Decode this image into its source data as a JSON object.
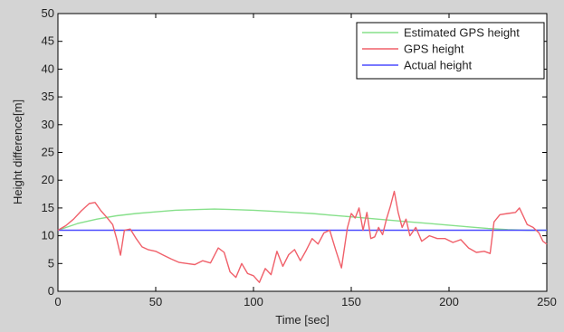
{
  "chart_data": {
    "type": "line",
    "title": "",
    "xlabel": "Time [sec]",
    "ylabel": "Height difference[m]",
    "xlim": [
      0,
      250
    ],
    "ylim": [
      0,
      50
    ],
    "x_ticks": [
      0,
      50,
      100,
      150,
      200,
      250
    ],
    "y_ticks": [
      0,
      5,
      10,
      15,
      20,
      25,
      30,
      35,
      40,
      45,
      50
    ],
    "grid": false,
    "legend_position": "top-right",
    "series": [
      {
        "name": "Estimated GPS height",
        "color": "#86e08a",
        "x": [
          0,
          10,
          20,
          30,
          40,
          50,
          60,
          70,
          80,
          90,
          100,
          110,
          120,
          130,
          140,
          150,
          160,
          170,
          180,
          190,
          200,
          210,
          220,
          230,
          240,
          250
        ],
        "y": [
          11,
          12.2,
          13,
          13.6,
          14,
          14.3,
          14.6,
          14.7,
          14.8,
          14.7,
          14.6,
          14.4,
          14.2,
          14,
          13.7,
          13.4,
          13.1,
          12.8,
          12.5,
          12.2,
          11.9,
          11.6,
          11.3,
          11.1,
          11,
          11
        ]
      },
      {
        "name": "GPS height",
        "color": "#f0606a",
        "x": [
          0,
          4,
          8,
          12,
          16,
          19,
          22,
          25,
          28,
          30,
          32,
          34,
          37,
          40,
          43,
          46,
          50,
          54,
          58,
          62,
          66,
          70,
          74,
          78,
          82,
          85,
          88,
          91,
          94,
          97,
          100,
          103,
          106,
          109,
          112,
          115,
          118,
          121,
          124,
          127,
          130,
          133,
          136,
          139,
          142,
          145,
          148,
          150,
          152,
          154,
          156,
          158,
          160,
          162,
          164,
          166,
          168,
          170,
          172,
          174,
          176,
          178,
          180,
          183,
          186,
          190,
          194,
          198,
          202,
          206,
          210,
          214,
          218,
          221,
          223,
          226,
          230,
          234,
          236,
          238,
          240,
          243,
          246,
          248,
          250
        ],
        "y": [
          11,
          11.8,
          13,
          14.5,
          15.8,
          16,
          14.5,
          13.3,
          12,
          9.5,
          6.5,
          11,
          11.2,
          9.5,
          8,
          7.5,
          7.2,
          6.5,
          5.8,
          5.2,
          5,
          4.8,
          5.5,
          5.1,
          7.8,
          7,
          3.5,
          2.5,
          5,
          3.2,
          2.8,
          1.6,
          4.1,
          3,
          7.2,
          4.5,
          6.6,
          7.5,
          5.5,
          7.4,
          9.5,
          8.5,
          10.5,
          11,
          7.5,
          4.2,
          11.4,
          14,
          13.2,
          15,
          11,
          14.2,
          9.5,
          9.8,
          11.5,
          10.2,
          13,
          15.3,
          18,
          14.2,
          11.5,
          13,
          10,
          11.5,
          9,
          10,
          9.5,
          9.5,
          8.8,
          9.3,
          7.8,
          7,
          7.2,
          6.8,
          12.5,
          13.8,
          14,
          14.2,
          15,
          13.5,
          12,
          11.5,
          10.5,
          9,
          8.5
        ]
      },
      {
        "name": "Actual height",
        "color": "#4c4cff",
        "x": [
          0,
          250
        ],
        "y": [
          11,
          11
        ]
      }
    ]
  }
}
